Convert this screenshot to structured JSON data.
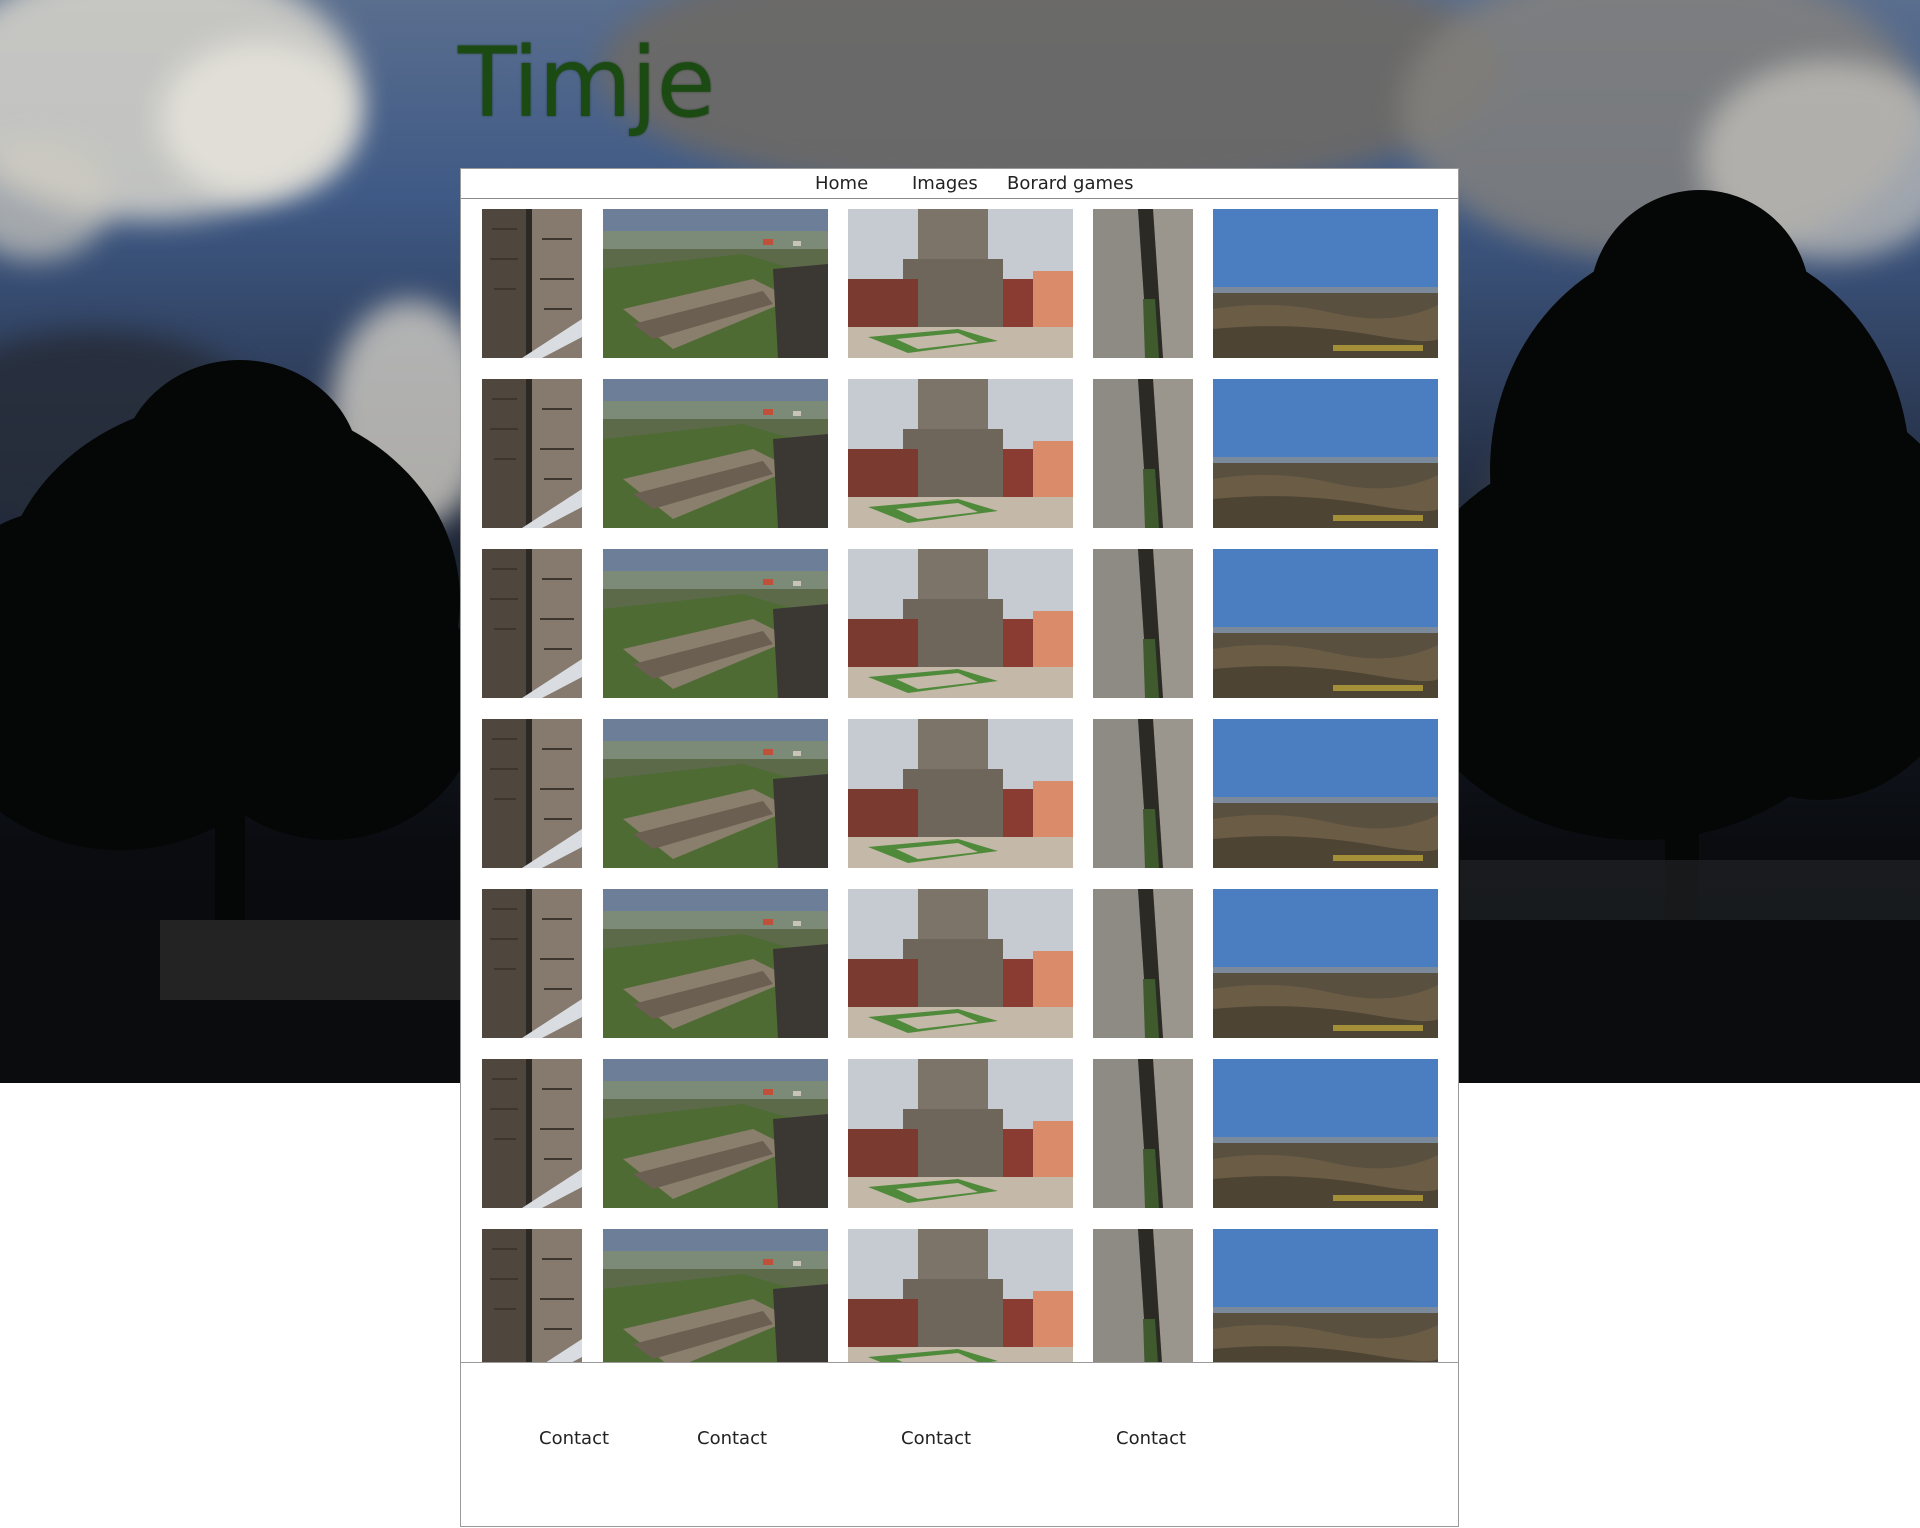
{
  "site": {
    "title": "Timje"
  },
  "nav": {
    "items": [
      {
        "label": "Home"
      },
      {
        "label": "Images"
      },
      {
        "label": "Borard games"
      }
    ]
  },
  "gallery": {
    "rows": 7,
    "images": [
      {
        "id": "stone-wall",
        "subject": "stone wall alley"
      },
      {
        "id": "fortress-view",
        "subject": "fortress walls overlooking town"
      },
      {
        "id": "castle-tower",
        "subject": "castle tower courtyard"
      },
      {
        "id": "rock-cleft",
        "subject": "narrow rock cleft"
      },
      {
        "id": "rocky-landscape",
        "subject": "rocky coastal landscape"
      }
    ]
  },
  "footer": {
    "links": [
      {
        "label": "Contact"
      },
      {
        "label": "Contact"
      },
      {
        "label": "Contact"
      },
      {
        "label": "Contact"
      }
    ]
  },
  "colors": {
    "title": "#1b4a12",
    "panel_border": "#9a9a9a",
    "text": "#222222"
  }
}
